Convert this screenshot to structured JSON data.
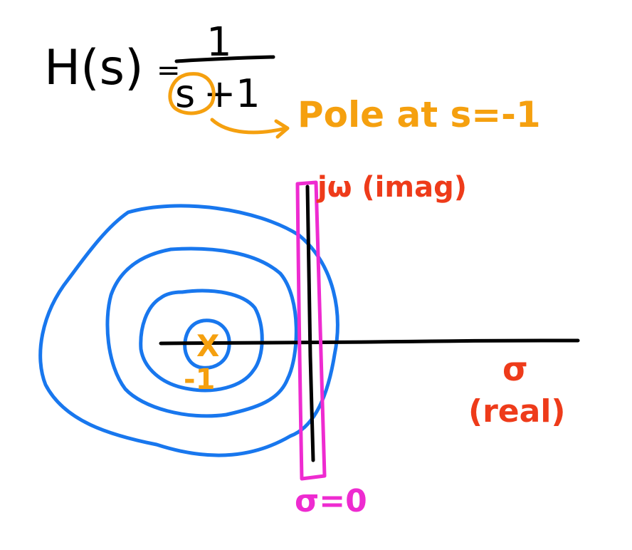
{
  "equation": {
    "lhs": "H(s)",
    "equals": "=",
    "numerator": "1",
    "denominator_s": "s",
    "denominator_rest": "+1"
  },
  "annotations": {
    "pole_note": "Pole at s=-1",
    "pole_marker": "X",
    "pole_value": "-1",
    "imag_axis_label": "jω (imag)",
    "real_axis_symbol": "σ",
    "real_axis_label": "(real)",
    "sigma_zero": "σ=0"
  },
  "colors": {
    "ink": "#000000",
    "orange": "#f5a00f",
    "blue": "#1877ee",
    "red": "#ee3b1a",
    "magenta": "#ee2bd0"
  }
}
